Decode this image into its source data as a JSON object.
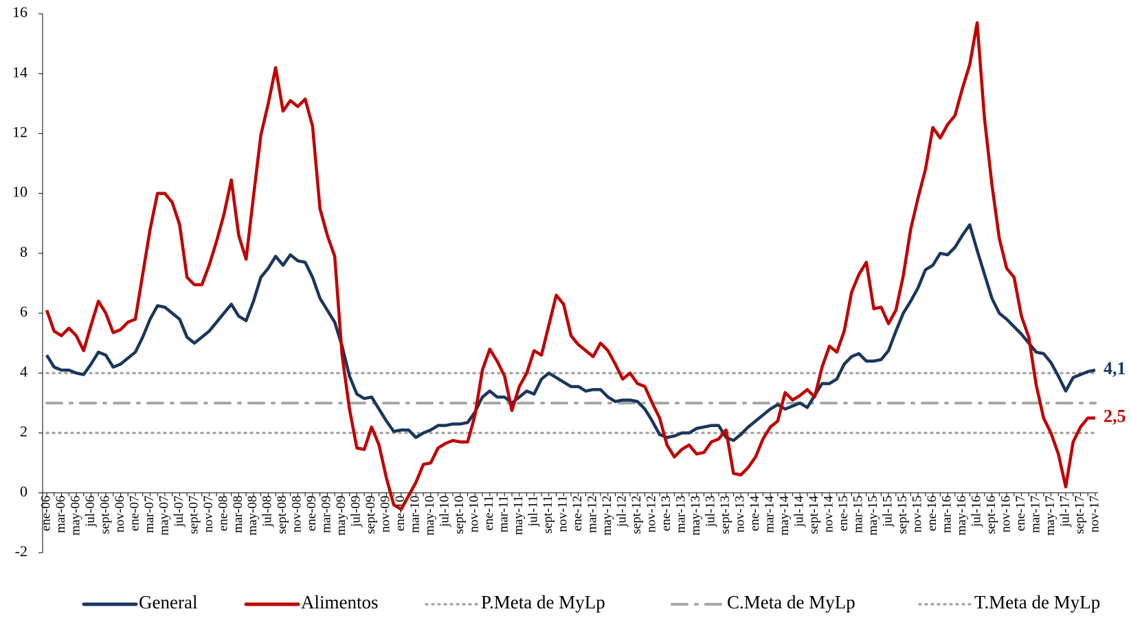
{
  "chart_data": {
    "type": "line",
    "categories": [
      "ene-06",
      null,
      "mar-06",
      null,
      "may-06",
      null,
      "jul-06",
      null,
      "sept-06",
      null,
      "nov-06",
      null,
      "ene-07",
      null,
      "mar-07",
      null,
      "may-07",
      null,
      "jul-07",
      null,
      "sept-07",
      null,
      "nov-07",
      null,
      "ene-08",
      null,
      "mar-08",
      null,
      "may-08",
      null,
      "jul-08",
      null,
      "sept-08",
      null,
      "nov-08",
      null,
      "ene-09",
      null,
      "mar-09",
      null,
      "may-09",
      null,
      "jul-09",
      null,
      "sept-09",
      null,
      "nov-09",
      null,
      "ene-10",
      null,
      "mar-10",
      null,
      "may-10",
      null,
      "jul-10",
      null,
      "sept-10",
      null,
      "nov-10",
      null,
      "ene-11",
      null,
      "mar-11",
      null,
      "may-11",
      null,
      "jul-11",
      null,
      "sept-11",
      null,
      "nov-11",
      null,
      "ene-12",
      null,
      "mar-12",
      null,
      "may-12",
      null,
      "jul-12",
      null,
      "sept-12",
      null,
      "nov-12",
      null,
      "ene-13",
      null,
      "mar-13",
      null,
      "may-13",
      null,
      "jul-13",
      null,
      "sept-13",
      null,
      "nov-13",
      null,
      "ene-14",
      null,
      "mar-14",
      null,
      "may-14",
      null,
      "jul-14",
      null,
      "sept-14",
      null,
      "nov-14",
      null,
      "ene-15",
      null,
      "mar-15",
      null,
      "may-15",
      null,
      "jul-15",
      null,
      "sept-15",
      null,
      "nov-15",
      null,
      "ene-16",
      null,
      "mar-16",
      null,
      "may-16",
      null,
      "jul-16",
      null,
      "sept-16",
      null,
      "nov-16",
      null,
      "ene-17",
      null,
      "mar-17",
      null,
      "may-17",
      null,
      "jul-17",
      null,
      "sept-17",
      null,
      "nov-17"
    ],
    "series": [
      {
        "name": "General",
        "color": "#1b365d",
        "end_label": "4,1",
        "values": [
          4.6,
          4.2,
          4.1,
          4.1,
          4.0,
          3.95,
          4.3,
          4.7,
          4.6,
          4.2,
          4.3,
          4.5,
          4.7,
          5.2,
          5.8,
          6.25,
          6.2,
          6.0,
          5.8,
          5.2,
          5.0,
          5.2,
          5.4,
          5.7,
          6.0,
          6.3,
          5.9,
          5.75,
          6.4,
          7.2,
          7.5,
          7.9,
          7.6,
          7.95,
          7.75,
          7.7,
          7.2,
          6.5,
          6.1,
          5.7,
          4.9,
          3.9,
          3.3,
          3.15,
          3.2,
          2.8,
          2.4,
          2.05,
          2.1,
          2.1,
          1.85,
          2.0,
          2.1,
          2.25,
          2.25,
          2.3,
          2.3,
          2.35,
          2.7,
          3.2,
          3.4,
          3.2,
          3.2,
          3.0,
          3.2,
          3.4,
          3.3,
          3.8,
          4.0,
          3.85,
          3.7,
          3.55,
          3.55,
          3.4,
          3.45,
          3.45,
          3.2,
          3.05,
          3.1,
          3.1,
          3.05,
          2.8,
          2.4,
          1.95,
          1.85,
          1.9,
          2.0,
          2.0,
          2.15,
          2.2,
          2.25,
          2.25,
          1.85,
          1.75,
          1.95,
          2.2,
          2.4,
          2.6,
          2.8,
          2.95,
          2.8,
          2.9,
          3.0,
          2.85,
          3.25,
          3.65,
          3.65,
          3.8,
          4.3,
          4.55,
          4.65,
          4.4,
          4.4,
          4.45,
          4.75,
          5.4,
          6.0,
          6.4,
          6.85,
          7.45,
          7.6,
          8.0,
          7.95,
          8.2,
          8.6,
          8.95,
          8.1,
          7.3,
          6.5,
          6.0,
          5.8,
          5.55,
          5.3,
          5.0,
          4.7,
          4.65,
          4.35,
          3.9,
          3.4,
          3.85,
          3.95,
          4.05,
          4.1
        ]
      },
      {
        "name": "Alimentos",
        "color": "#c00000",
        "end_label": "2,5",
        "values": [
          6.1,
          5.4,
          5.25,
          5.5,
          5.25,
          4.75,
          5.6,
          6.4,
          6.0,
          5.35,
          5.45,
          5.7,
          5.8,
          7.3,
          8.8,
          10.0,
          10.0,
          9.7,
          8.95,
          7.2,
          6.95,
          6.95,
          7.6,
          8.4,
          9.3,
          10.45,
          8.6,
          7.8,
          9.9,
          11.95,
          13.0,
          14.2,
          12.75,
          13.1,
          12.9,
          13.15,
          12.25,
          9.5,
          8.6,
          7.9,
          4.6,
          2.8,
          1.5,
          1.45,
          2.2,
          1.6,
          0.5,
          -0.4,
          -0.55,
          -0.1,
          0.35,
          0.95,
          1.0,
          1.5,
          1.65,
          1.75,
          1.7,
          1.7,
          2.6,
          4.1,
          4.8,
          4.4,
          3.9,
          2.75,
          3.55,
          4.0,
          4.75,
          4.6,
          5.6,
          6.6,
          6.3,
          5.25,
          4.95,
          4.75,
          4.55,
          5.0,
          4.75,
          4.3,
          3.8,
          4.0,
          3.65,
          3.55,
          3.0,
          2.5,
          1.6,
          1.2,
          1.45,
          1.6,
          1.3,
          1.35,
          1.7,
          1.8,
          2.1,
          0.65,
          0.6,
          0.85,
          1.2,
          1.8,
          2.2,
          2.4,
          3.35,
          3.1,
          3.25,
          3.45,
          3.2,
          4.2,
          4.9,
          4.7,
          5.4,
          6.7,
          7.3,
          7.7,
          6.15,
          6.2,
          5.65,
          6.1,
          7.25,
          8.8,
          9.85,
          10.8,
          12.2,
          11.85,
          12.3,
          12.6,
          13.5,
          14.3,
          15.7,
          12.5,
          10.3,
          8.5,
          7.5,
          7.2,
          5.9,
          5.2,
          3.6,
          2.5,
          2.0,
          1.3,
          0.2,
          1.7,
          2.2,
          2.5,
          2.5
        ]
      }
    ],
    "reference_lines": [
      {
        "name": "P.Meta de MyLp",
        "value": 4,
        "color": "#a6a6a6",
        "style": "dotted"
      },
      {
        "name": "C.Meta de MyLp",
        "value": 3,
        "color": "#a6a6a6",
        "style": "dashdot"
      },
      {
        "name": "T.Meta de MyLp",
        "value": 2,
        "color": "#a6a6a6",
        "style": "dotted"
      }
    ],
    "ylim": [
      -2,
      16
    ],
    "yticks": [
      -2,
      0,
      2,
      4,
      6,
      8,
      10,
      12,
      14,
      16
    ],
    "grid": false,
    "legend": "bottom"
  }
}
